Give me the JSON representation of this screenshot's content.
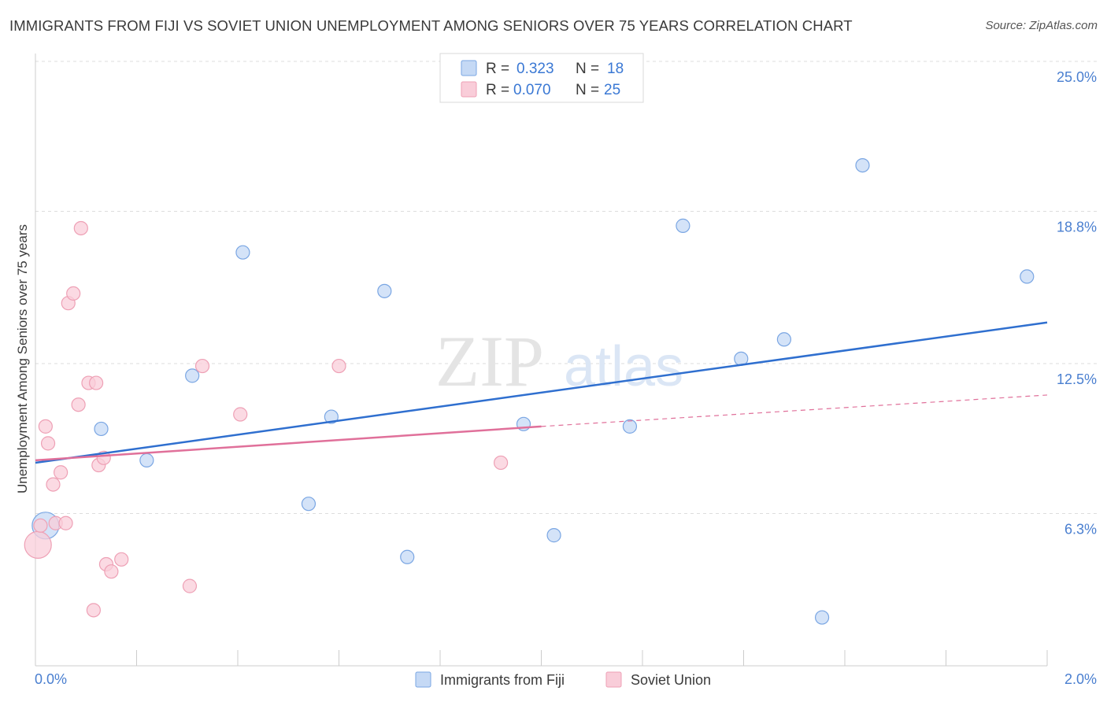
{
  "header": {
    "title": "IMMIGRANTS FROM FIJI VS SOVIET UNION UNEMPLOYMENT AMONG SENIORS OVER 75 YEARS CORRELATION CHART",
    "source": "Source: ZipAtlas.com"
  },
  "colors": {
    "fiji_fill": "#c5d9f5",
    "fiji_stroke": "#7aa6e3",
    "fiji_line": "#2f6fcf",
    "soviet_fill": "#f9cdd9",
    "soviet_stroke": "#eea0b5",
    "soviet_line": "#e0709a",
    "grid": "#dddddd",
    "tick_text": "#4a7fd0"
  },
  "legend": {
    "r_label": "R =",
    "n_label": "N =",
    "fiji_r": "0.323",
    "fiji_n": "18",
    "soviet_r": "0.070",
    "soviet_n": "25"
  },
  "watermark": {
    "zip": "ZIP",
    "atlas": "atlas"
  },
  "chart_data": {
    "type": "scatter",
    "title": "IMMIGRANTS FROM FIJI VS SOVIET UNION UNEMPLOYMENT AMONG SENIORS OVER 75 YEARS CORRELATION CHART",
    "xlabel": "",
    "ylabel": "Unemployment Among Seniors over 75 years",
    "xlim": [
      0,
      2.0
    ],
    "ylim": [
      0,
      25.0
    ],
    "x_tick_labels": [
      "0.0%",
      "2.0%"
    ],
    "y_tick_labels": [
      "6.3%",
      "12.5%",
      "18.8%",
      "25.0%"
    ],
    "y_ticks": [
      6.3,
      12.5,
      18.8,
      25.0
    ],
    "grid": true,
    "legend_position": "top-center",
    "series": [
      {
        "name": "Immigrants from Fiji",
        "r": 0.323,
        "n": 18,
        "points": [
          {
            "x": 0.02,
            "y": 5.8,
            "large": true
          },
          {
            "x": 0.13,
            "y": 9.8
          },
          {
            "x": 0.22,
            "y": 8.5
          },
          {
            "x": 0.31,
            "y": 12.0
          },
          {
            "x": 0.41,
            "y": 17.1
          },
          {
            "x": 0.54,
            "y": 6.7
          },
          {
            "x": 0.585,
            "y": 10.3
          },
          {
            "x": 0.69,
            "y": 15.5
          },
          {
            "x": 0.735,
            "y": 4.5
          },
          {
            "x": 0.965,
            "y": 10.0
          },
          {
            "x": 1.025,
            "y": 5.4
          },
          {
            "x": 1.175,
            "y": 9.9
          },
          {
            "x": 1.28,
            "y": 18.2
          },
          {
            "x": 1.395,
            "y": 12.7
          },
          {
            "x": 1.48,
            "y": 13.5
          },
          {
            "x": 1.555,
            "y": 2.0
          },
          {
            "x": 1.635,
            "y": 20.7
          },
          {
            "x": 1.96,
            "y": 16.1
          }
        ],
        "trend": {
          "x": [
            0.0,
            2.0
          ],
          "y": [
            8.4,
            14.2
          ]
        }
      },
      {
        "name": "Soviet Union",
        "r": 0.07,
        "n": 25,
        "points": [
          {
            "x": 0.005,
            "y": 5.0,
            "large": true
          },
          {
            "x": 0.01,
            "y": 5.8
          },
          {
            "x": 0.02,
            "y": 9.9
          },
          {
            "x": 0.025,
            "y": 9.2
          },
          {
            "x": 0.035,
            "y": 7.5
          },
          {
            "x": 0.04,
            "y": 5.9
          },
          {
            "x": 0.05,
            "y": 8.0
          },
          {
            "x": 0.06,
            "y": 5.9
          },
          {
            "x": 0.065,
            "y": 15.0
          },
          {
            "x": 0.075,
            "y": 15.4
          },
          {
            "x": 0.085,
            "y": 10.8
          },
          {
            "x": 0.09,
            "y": 18.1
          },
          {
            "x": 0.105,
            "y": 11.7
          },
          {
            "x": 0.115,
            "y": 2.3
          },
          {
            "x": 0.12,
            "y": 11.7
          },
          {
            "x": 0.125,
            "y": 8.3
          },
          {
            "x": 0.135,
            "y": 8.6
          },
          {
            "x": 0.14,
            "y": 4.2
          },
          {
            "x": 0.15,
            "y": 3.9
          },
          {
            "x": 0.17,
            "y": 4.4
          },
          {
            "x": 0.305,
            "y": 3.3
          },
          {
            "x": 0.33,
            "y": 12.4
          },
          {
            "x": 0.405,
            "y": 10.4
          },
          {
            "x": 0.6,
            "y": 12.4
          },
          {
            "x": 0.92,
            "y": 8.4
          }
        ],
        "trend": {
          "x": [
            0.0,
            1.0
          ],
          "y": [
            8.5,
            9.9
          ]
        },
        "trend_extension": {
          "x": [
            1.0,
            2.0
          ],
          "y": [
            9.9,
            11.2
          ]
        }
      }
    ]
  }
}
